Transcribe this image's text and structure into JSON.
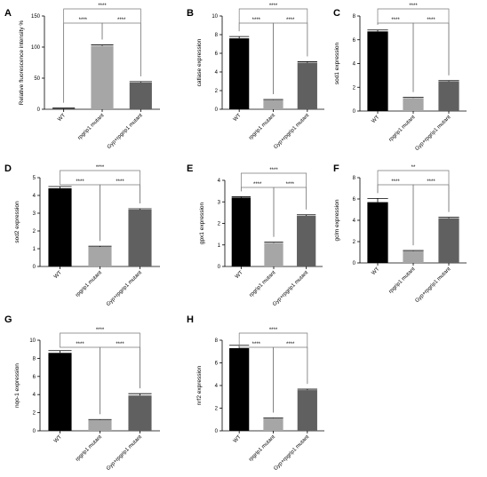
{
  "categories": [
    "WT",
    "rpgrip1 mutant",
    "Gyp+rpgrip1 mutant"
  ],
  "colors": {
    "bars": [
      "#000000",
      "#a6a6a6",
      "#606060"
    ]
  },
  "chart_data": [
    {
      "id": "A",
      "type": "bar",
      "categories": [
        "WT",
        "rpgrip1 mutant",
        "Gyp+rpgrip1 mutant"
      ],
      "values": [
        1,
        102,
        43
      ],
      "errors": [
        1,
        1.5,
        1.5
      ],
      "ylabel": "Relative fluorescence intensity %",
      "ylim": [
        0,
        150
      ],
      "yticks": [
        0,
        50,
        100,
        150
      ],
      "xlabel": "",
      "sig": [
        {
          "from": 0,
          "to": 2,
          "label": "****"
        },
        {
          "from": 0,
          "to": 1,
          "label": "****"
        },
        {
          "from": 1,
          "to": 2,
          "label": "****"
        }
      ]
    },
    {
      "id": "B",
      "type": "bar",
      "categories": [
        "WT",
        "rpgrip1 mutant",
        "Gyp+rpgrip1 mutant"
      ],
      "values": [
        7.6,
        1.0,
        5.0
      ],
      "errors": [
        0.2,
        0.05,
        0.1
      ],
      "ylabel": "catlase expression",
      "ylim": [
        0,
        10
      ],
      "yticks": [
        0,
        2,
        4,
        6,
        8,
        10
      ],
      "xlabel": "",
      "sig": [
        {
          "from": 0,
          "to": 2,
          "label": "****"
        },
        {
          "from": 0,
          "to": 1,
          "label": "****"
        },
        {
          "from": 1,
          "to": 2,
          "label": "****"
        }
      ]
    },
    {
      "id": "C",
      "type": "bar",
      "categories": [
        "WT",
        "rpgrip1 mutant",
        "Gyp+rpgrip1 mutant"
      ],
      "values": [
        6.7,
        1.1,
        2.5
      ],
      "errors": [
        0.12,
        0.05,
        0.06
      ],
      "ylabel": "sod1 expression",
      "ylim": [
        0,
        8
      ],
      "yticks": [
        0,
        2,
        4,
        6,
        8
      ],
      "xlabel": "",
      "sig": [
        {
          "from": 0,
          "to": 2,
          "label": "****"
        },
        {
          "from": 0,
          "to": 1,
          "label": "****"
        },
        {
          "from": 1,
          "to": 2,
          "label": "****"
        }
      ]
    },
    {
      "id": "D",
      "type": "bar",
      "categories": [
        "WT",
        "rpgrip1 mutant",
        "Gyp+rpgrip1 mutant"
      ],
      "values": [
        4.4,
        1.1,
        3.2
      ],
      "errors": [
        0.1,
        0.04,
        0.05
      ],
      "ylabel": "sod2 expression",
      "ylim": [
        0,
        5
      ],
      "yticks": [
        0,
        1,
        2,
        3,
        4,
        5
      ],
      "xlabel": "",
      "sig": [
        {
          "from": 0,
          "to": 2,
          "label": "****"
        },
        {
          "from": 0,
          "to": 1,
          "label": "****"
        },
        {
          "from": 1,
          "to": 2,
          "label": "****"
        }
      ]
    },
    {
      "id": "E",
      "type": "bar",
      "categories": [
        "WT",
        "rpgrip1 mutant",
        "Gyp+rpgrip1 mutant"
      ],
      "values": [
        3.2,
        1.1,
        2.35
      ],
      "errors": [
        0.04,
        0.03,
        0.05
      ],
      "ylabel": "gpx1 expression",
      "ylim": [
        0,
        4
      ],
      "yticks": [
        0,
        1,
        2,
        3,
        4
      ],
      "xlabel": "",
      "sig": [
        {
          "from": 0,
          "to": 2,
          "label": "****"
        },
        {
          "from": 0,
          "to": 1,
          "label": "****"
        },
        {
          "from": 1,
          "to": 2,
          "label": "****"
        }
      ]
    },
    {
      "id": "F",
      "type": "bar",
      "categories": [
        "WT",
        "rpgrip1 mutant",
        "Gyp+rpgrip1 mutant"
      ],
      "values": [
        5.7,
        1.1,
        4.2
      ],
      "errors": [
        0.35,
        0.06,
        0.08
      ],
      "ylabel": "gclm expression",
      "ylim": [
        0,
        8
      ],
      "yticks": [
        0,
        2,
        4,
        6,
        8
      ],
      "xlabel": "",
      "sig": [
        {
          "from": 0,
          "to": 2,
          "label": "**"
        },
        {
          "from": 0,
          "to": 1,
          "label": "****"
        },
        {
          "from": 1,
          "to": 2,
          "label": "****"
        }
      ]
    },
    {
      "id": "G",
      "type": "bar",
      "categories": [
        "WT",
        "rpgrip1 mutant",
        "Gyp+rpgrip1 mutant"
      ],
      "values": [
        8.6,
        1.2,
        3.9
      ],
      "errors": [
        0.25,
        0.05,
        0.2
      ],
      "ylabel": "nqo-1 expression",
      "ylim": [
        0,
        10
      ],
      "yticks": [
        0,
        2,
        4,
        6,
        8,
        10
      ],
      "xlabel": "",
      "sig": [
        {
          "from": 0,
          "to": 2,
          "label": "****"
        },
        {
          "from": 0,
          "to": 1,
          "label": "****"
        },
        {
          "from": 1,
          "to": 2,
          "label": "****"
        }
      ]
    },
    {
      "id": "H",
      "type": "bar",
      "categories": [
        "WT",
        "rpgrip1 mutant",
        "Gyp+rpgrip1 mutant"
      ],
      "values": [
        7.3,
        1.1,
        3.6
      ],
      "errors": [
        0.25,
        0.04,
        0.08
      ],
      "ylabel": "nrf2 expression",
      "ylim": [
        0,
        8
      ],
      "yticks": [
        0,
        2,
        4,
        6,
        8
      ],
      "xlabel": "",
      "sig": [
        {
          "from": 0,
          "to": 2,
          "label": "****"
        },
        {
          "from": 0,
          "to": 1,
          "label": "****"
        },
        {
          "from": 1,
          "to": 2,
          "label": "****"
        }
      ]
    }
  ]
}
